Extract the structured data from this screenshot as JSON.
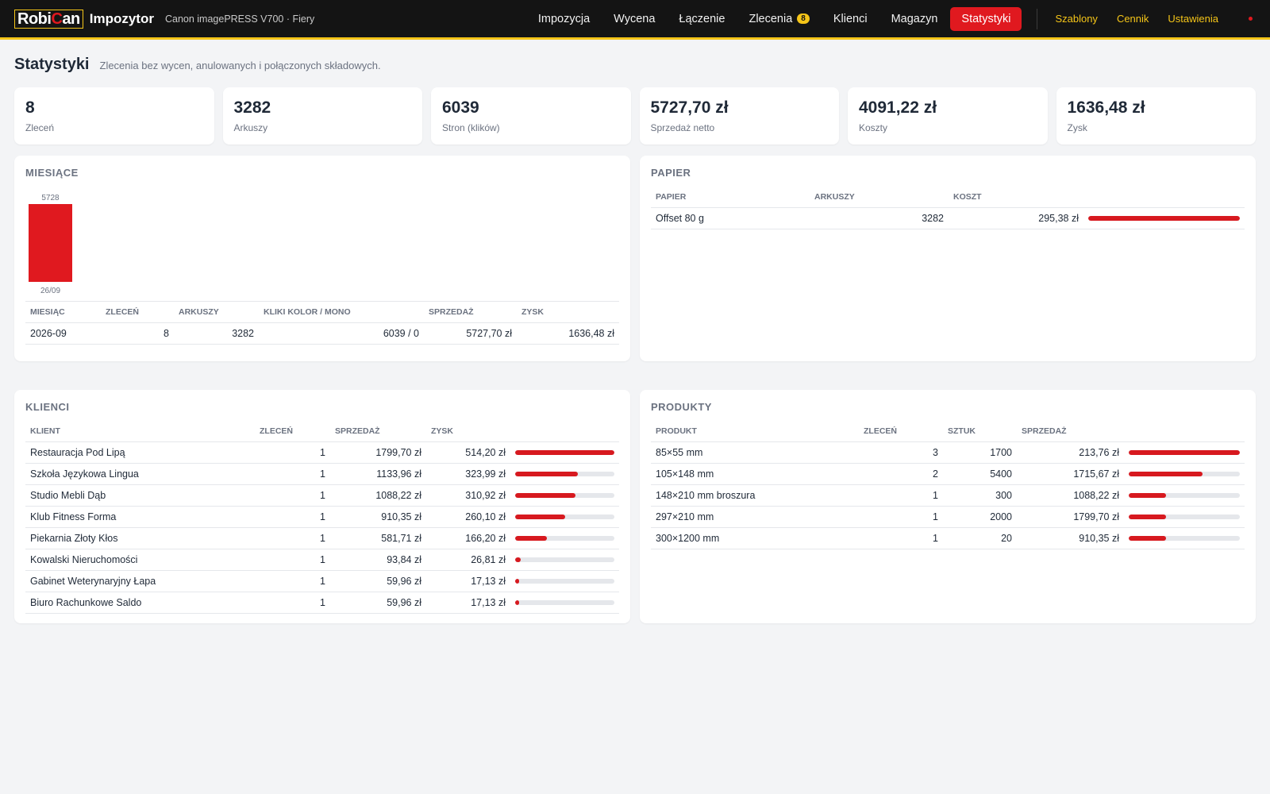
{
  "brand": {
    "logo_left": "Robi",
    "logo_c": "C",
    "logo_right": "an",
    "app": "Impozytor",
    "device": "Canon imagePRESS V700 · Fiery"
  },
  "nav": {
    "items": [
      {
        "label": "Impozycja"
      },
      {
        "label": "Wycena"
      },
      {
        "label": "Łączenie"
      },
      {
        "label": "Zlecenia",
        "badge": "8"
      },
      {
        "label": "Klienci"
      },
      {
        "label": "Magazyn"
      },
      {
        "label": "Statystyki",
        "active": true
      }
    ],
    "secondary": [
      {
        "label": "Szablony"
      },
      {
        "label": "Cennik"
      },
      {
        "label": "Ustawienia"
      }
    ]
  },
  "header": {
    "title": "Statystyki",
    "subtitle": "Zlecenia bez wycen, anulowanych i połączonych składowych."
  },
  "kpis": [
    {
      "value": "8",
      "label": "Zleceń"
    },
    {
      "value": "3282",
      "label": "Arkuszy"
    },
    {
      "value": "6039",
      "label": "Stron (klików)"
    },
    {
      "value": "5727,70 zł",
      "label": "Sprzedaż netto"
    },
    {
      "value": "4091,22 zł",
      "label": "Koszty"
    },
    {
      "value": "1636,48 zł",
      "label": "Zysk"
    }
  ],
  "months": {
    "title": "MIESIĄCE",
    "columns": [
      "MIESIĄC",
      "ZLECEŃ",
      "ARKUSZY",
      "KLIKI KOLOR / MONO",
      "SPRZEDAŻ",
      "ZYSK"
    ],
    "rows": [
      [
        "2026-09",
        "8",
        "3282",
        "6039 / 0",
        "5727,70 zł",
        "1636,48 zł"
      ]
    ]
  },
  "chart_data": {
    "type": "bar",
    "categories": [
      "26/09"
    ],
    "values": [
      5728
    ],
    "data_labels": [
      "5728"
    ],
    "color": "#e0191f"
  },
  "paper": {
    "title": "PAPIER",
    "columns": [
      "PAPIER",
      "ARKUSZY",
      "KOSZT"
    ],
    "rows": [
      {
        "name": "Offset 80 g",
        "sheets": "3282",
        "cost": "295,38 zł",
        "share": 1.0
      }
    ]
  },
  "clients": {
    "title": "KLIENCI",
    "columns": [
      "KLIENT",
      "ZLECEŃ",
      "SPRZEDAŻ",
      "ZYSK"
    ],
    "rows": [
      {
        "name": "Restauracja Pod Lipą",
        "orders": "1",
        "sales": "1799,70 zł",
        "profit": "514,20 zł",
        "share": 1.0
      },
      {
        "name": "Szkoła Językowa Lingua",
        "orders": "1",
        "sales": "1133,96 zł",
        "profit": "323,99 zł",
        "share": 0.63
      },
      {
        "name": "Studio Mebli Dąb",
        "orders": "1",
        "sales": "1088,22 zł",
        "profit": "310,92 zł",
        "share": 0.605
      },
      {
        "name": "Klub Fitness Forma",
        "orders": "1",
        "sales": "910,35 zł",
        "profit": "260,10 zł",
        "share": 0.506
      },
      {
        "name": "Piekarnia Złoty Kłos",
        "orders": "1",
        "sales": "581,71 zł",
        "profit": "166,20 zł",
        "share": 0.323
      },
      {
        "name": "Kowalski Nieruchomości",
        "orders": "1",
        "sales": "93,84 zł",
        "profit": "26,81 zł",
        "share": 0.052
      },
      {
        "name": "Gabinet Weterynaryjny Łapa",
        "orders": "1",
        "sales": "59,96 zł",
        "profit": "17,13 zł",
        "share": 0.033
      },
      {
        "name": "Biuro Rachunkowe Saldo",
        "orders": "1",
        "sales": "59,96 zł",
        "profit": "17,13 zł",
        "share": 0.033
      }
    ]
  },
  "products": {
    "title": "PRODUKTY",
    "columns": [
      "PRODUKT",
      "ZLECEŃ",
      "SZTUK",
      "SPRZEDAŻ"
    ],
    "rows": [
      {
        "name": "85×55 mm",
        "orders": "3",
        "pieces": "1700",
        "sales": "213,76 zł",
        "share": 1.0
      },
      {
        "name": "105×148 mm",
        "orders": "2",
        "pieces": "5400",
        "sales": "1715,67 zł",
        "share": 0.667
      },
      {
        "name": "148×210 mm broszura",
        "orders": "1",
        "pieces": "300",
        "sales": "1088,22 zł",
        "share": 0.333
      },
      {
        "name": "297×210 mm",
        "orders": "1",
        "pieces": "2000",
        "sales": "1799,70 zł",
        "share": 0.333
      },
      {
        "name": "300×1200 mm",
        "orders": "1",
        "pieces": "20",
        "sales": "910,35 zł",
        "share": 0.333
      }
    ]
  }
}
